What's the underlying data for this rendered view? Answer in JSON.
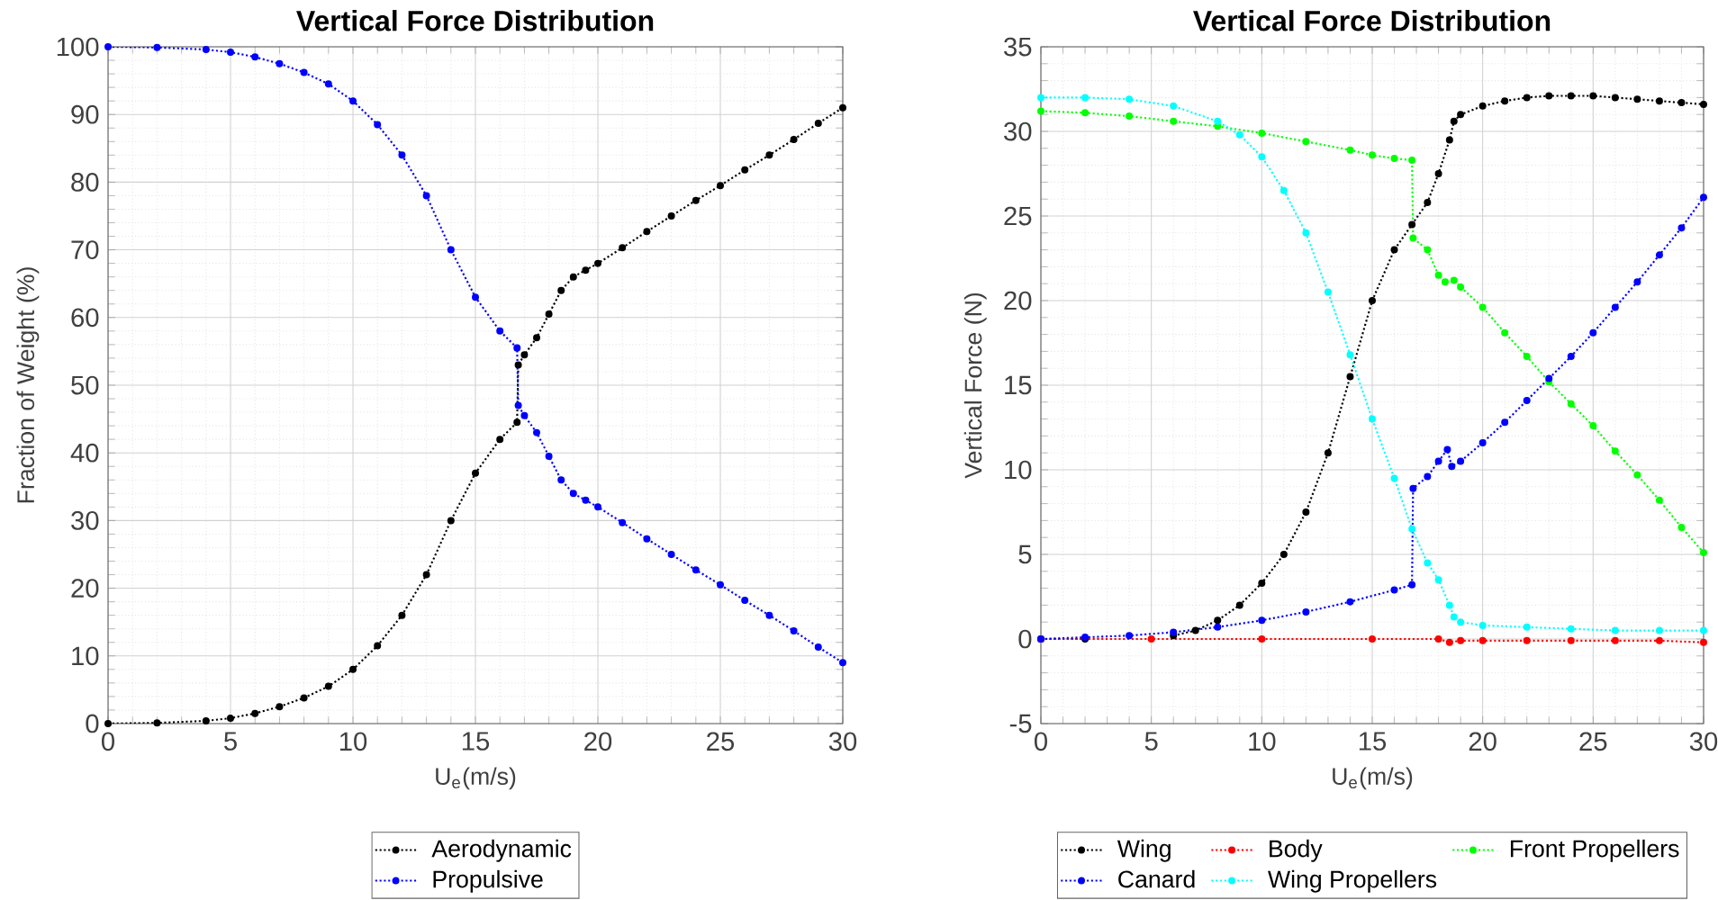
{
  "chart_data": [
    {
      "type": "line",
      "title": "Vertical Force Distribution",
      "xlabel": "U$_{e}$(m/s)",
      "ylabel": "Fraction of Weight (%)",
      "xlim": [
        0,
        30
      ],
      "ylim": [
        0,
        100
      ],
      "xticks": [
        0,
        5,
        10,
        15,
        20,
        25,
        30
      ],
      "yticks": [
        0,
        10,
        20,
        30,
        40,
        50,
        60,
        70,
        80,
        90,
        100
      ],
      "grid": true,
      "legend": "bottom",
      "marker": "circle",
      "line_style": "dotted",
      "series": [
        {
          "name": "Aerodynamic",
          "color": "#000000",
          "x": [
            0,
            2,
            4,
            5,
            6,
            7,
            8,
            9,
            10,
            11,
            12,
            13,
            14,
            15,
            16,
            16.7,
            16.75,
            17,
            17.5,
            18,
            18.5,
            19,
            19.5,
            20,
            21,
            22,
            23,
            24,
            25,
            26,
            27,
            28,
            29,
            30
          ],
          "values": [
            0,
            0.1,
            0.4,
            0.8,
            1.5,
            2.5,
            3.8,
            5.5,
            8,
            11.5,
            16,
            22,
            30,
            37,
            42,
            44.5,
            53,
            54.5,
            57,
            60.5,
            64,
            66,
            67,
            68,
            70.3,
            72.7,
            75,
            77.3,
            79.5,
            81.8,
            84,
            86.3,
            88.7,
            91
          ]
        },
        {
          "name": "Propulsive",
          "color": "#0000ff",
          "x": [
            0,
            2,
            4,
            5,
            6,
            7,
            8,
            9,
            10,
            11,
            12,
            13,
            14,
            15,
            16,
            16.7,
            16.75,
            17,
            17.5,
            18,
            18.5,
            19,
            19.5,
            20,
            21,
            22,
            23,
            24,
            25,
            26,
            27,
            28,
            29,
            30
          ],
          "values": [
            100,
            99.9,
            99.6,
            99.2,
            98.5,
            97.5,
            96.2,
            94.5,
            92,
            88.5,
            84,
            78,
            70,
            63,
            58,
            55.5,
            47,
            45.5,
            43,
            39.5,
            36,
            34,
            33,
            32,
            29.7,
            27.3,
            25,
            22.7,
            20.5,
            18.2,
            16,
            13.7,
            11.3,
            9
          ]
        }
      ]
    },
    {
      "type": "line",
      "title": "Vertical Force Distribution",
      "xlabel": "U$_{e}$(m/s)",
      "ylabel": "Vertical Force (N)",
      "xlim": [
        0,
        30
      ],
      "ylim": [
        -5,
        35
      ],
      "xticks": [
        0,
        5,
        10,
        15,
        20,
        25,
        30
      ],
      "yticks": [
        -5,
        0,
        5,
        10,
        15,
        20,
        25,
        30,
        35
      ],
      "grid": true,
      "legend": "bottom",
      "marker": "circle",
      "line_style": "dotted",
      "series": [
        {
          "name": "Wing",
          "color": "#000000",
          "x": [
            0,
            2,
            4,
            6,
            7,
            8,
            9,
            10,
            11,
            12,
            13,
            14,
            15,
            16,
            16.8,
            17.5,
            18,
            18.5,
            18.7,
            19,
            20,
            21,
            22,
            23,
            24,
            25,
            26,
            27,
            28,
            29,
            30
          ],
          "values": [
            0,
            0,
            null,
            0.2,
            0.5,
            1.1,
            2,
            3.3,
            5,
            7.5,
            11,
            15.5,
            20,
            23,
            24.5,
            25.8,
            27.5,
            29.5,
            30.6,
            31,
            31.5,
            31.8,
            32,
            32.1,
            32.1,
            32.1,
            32,
            31.9,
            31.8,
            31.7,
            31.6
          ]
        },
        {
          "name": "Body",
          "color": "#ff0000",
          "x": [
            0,
            5,
            10,
            15,
            18,
            18.5,
            19,
            20,
            22,
            24,
            26,
            28,
            30
          ],
          "values": [
            0,
            0,
            0,
            0,
            0,
            -0.2,
            -0.1,
            -0.1,
            -0.1,
            -0.1,
            -0.1,
            -0.1,
            -0.2
          ]
        },
        {
          "name": "Front Propellers",
          "color": "#00ff00",
          "x": [
            0,
            2,
            4,
            6,
            8,
            10,
            12,
            14,
            15,
            16,
            16.8,
            16.85,
            17.5,
            18,
            18.3,
            18.7,
            19,
            20,
            21,
            22,
            23,
            24,
            25,
            26,
            27,
            28,
            29,
            30
          ],
          "values": [
            31.2,
            31.1,
            30.9,
            30.6,
            30.3,
            29.9,
            29.4,
            28.9,
            28.6,
            28.4,
            28.3,
            23.7,
            23,
            21.5,
            21.1,
            21.2,
            20.8,
            19.6,
            18.1,
            16.7,
            15.2,
            13.9,
            12.6,
            11.1,
            9.7,
            8.2,
            6.6,
            5.1
          ]
        },
        {
          "name": "Canard",
          "color": "#0000ff",
          "x": [
            0,
            2,
            4,
            6,
            8,
            10,
            12,
            14,
            16,
            16.8,
            16.85,
            17.5,
            18,
            18.4,
            18.6,
            19,
            20,
            21,
            22,
            23,
            24,
            25,
            26,
            27,
            28,
            29,
            30
          ],
          "values": [
            0,
            0.1,
            0.2,
            0.4,
            0.7,
            1.1,
            1.6,
            2.2,
            2.9,
            3.2,
            8.9,
            9.6,
            10.5,
            11.2,
            10.2,
            10.5,
            11.6,
            12.8,
            14.1,
            15.4,
            16.7,
            18.1,
            19.6,
            21.1,
            22.7,
            24.3,
            26.1
          ]
        },
        {
          "name": "Wing Propellers",
          "color": "#00ffff",
          "x": [
            0,
            2,
            4,
            6,
            8,
            9,
            10,
            11,
            12,
            13,
            14,
            15,
            16,
            16.8,
            17.5,
            18,
            18.5,
            18.7,
            19,
            20,
            22,
            24,
            26,
            28,
            30
          ],
          "values": [
            32,
            32,
            31.9,
            31.5,
            30.6,
            29.8,
            28.5,
            26.5,
            24,
            20.5,
            16.8,
            13,
            9.5,
            6.5,
            4.5,
            3.5,
            2,
            1.3,
            1,
            0.8,
            0.7,
            0.6,
            0.5,
            0.5,
            0.5
          ]
        }
      ]
    }
  ]
}
